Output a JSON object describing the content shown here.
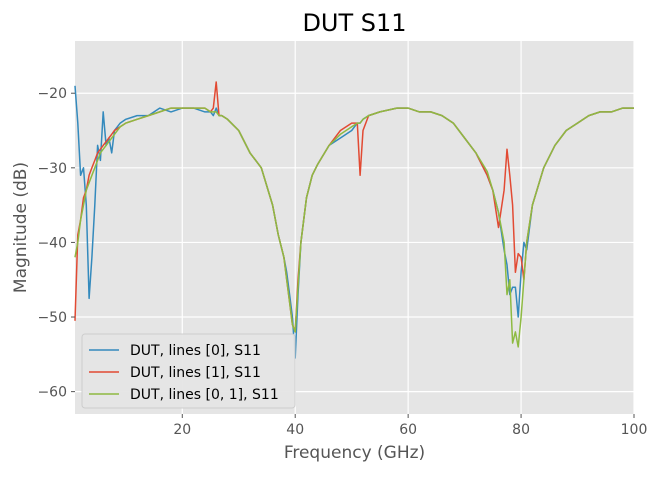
{
  "chart_data": {
    "type": "line",
    "title": "DUT S11",
    "xlabel": "Frequency (GHz)",
    "ylabel": "Magnitude (dB)",
    "xlim": [
      1,
      100
    ],
    "ylim": [
      -63,
      -13
    ],
    "xticks": [
      20,
      40,
      60,
      80,
      100
    ],
    "yticks": [
      -20,
      -30,
      -40,
      -50,
      -60
    ],
    "xtick_labels": [
      "20",
      "40",
      "60",
      "80",
      "100"
    ],
    "ytick_labels": [
      "−20",
      "−30",
      "−40",
      "−50",
      "−60"
    ],
    "grid": true,
    "style": "ggplot",
    "legend_position": "lower-left",
    "x": [
      1,
      1.5,
      2,
      2.5,
      3,
      3.5,
      4,
      4.5,
      5,
      5.5,
      6,
      6.5,
      7,
      7.5,
      8,
      9,
      10,
      12,
      14,
      16,
      18,
      20,
      22,
      24,
      25,
      25.5,
      26,
      26.5,
      27,
      28,
      30,
      32,
      34,
      36,
      37,
      38,
      38.5,
      39,
      39.5,
      40,
      40.5,
      41,
      41.5,
      42,
      43,
      44,
      46,
      48,
      50,
      51,
      51.5,
      52,
      53,
      55,
      58,
      60,
      62,
      64,
      66,
      68,
      70,
      72,
      74,
      75,
      76,
      77,
      77.5,
      78,
      78.5,
      79,
      79.5,
      80,
      80.5,
      81,
      82,
      84,
      86,
      88,
      90,
      92,
      94,
      96,
      98,
      99,
      100
    ],
    "series": [
      {
        "name": "DUT, lines [0], S11",
        "color": "#348ABD",
        "values": [
          -19,
          -24,
          -31,
          -30,
          -35,
          -47.5,
          -42,
          -35,
          -27,
          -29,
          -22.5,
          -27,
          -26,
          -28,
          -25,
          -24,
          -23.5,
          -23,
          -23,
          -22,
          -22.5,
          -22,
          -22,
          -22.5,
          -22.5,
          -23,
          -22,
          -23,
          -23,
          -23.5,
          -25,
          -28,
          -30,
          -35,
          -39,
          -42,
          -44,
          -47,
          -50,
          -55.5,
          -47,
          -40,
          -37,
          -34,
          -31,
          -29.5,
          -27,
          -26,
          -25,
          -24,
          -24,
          -23.5,
          -23,
          -22.5,
          -22,
          -22,
          -22.5,
          -22.5,
          -23,
          -24,
          -26,
          -28,
          -31,
          -33,
          -36,
          -41,
          -43,
          -47,
          -46,
          -46,
          -50,
          -44,
          -40,
          -41,
          -35,
          -30,
          -27,
          -25,
          -24,
          -23,
          -22.5,
          -22.5,
          -22,
          -22,
          -22
        ]
      },
      {
        "name": "DUT, lines [1], S11",
        "color": "#E24A33",
        "values": [
          -50.5,
          -39,
          -37,
          -34,
          -33,
          -31,
          -30,
          -29,
          -28,
          -27.5,
          -27,
          -26.5,
          -26,
          -25.5,
          -25,
          -24.5,
          -24,
          -23.5,
          -23,
          -22.5,
          -22,
          -22,
          -22,
          -22,
          -22.5,
          -22,
          -18.5,
          -23,
          -23,
          -23.5,
          -25,
          -28,
          -30,
          -35,
          -39,
          -42,
          -45,
          -48,
          -51,
          -52,
          -45,
          -40,
          -37,
          -34,
          -31,
          -29.5,
          -27,
          -25,
          -24,
          -24,
          -31,
          -25,
          -23,
          -22.5,
          -22,
          -22,
          -22.5,
          -22.5,
          -23,
          -24,
          -26,
          -28,
          -31,
          -33,
          -38,
          -33,
          -27.5,
          -31,
          -35,
          -44,
          -41.5,
          -42,
          -45,
          -40,
          -35,
          -30,
          -27,
          -25,
          -24,
          -23,
          -22.5,
          -22.5,
          -22,
          -22,
          -22
        ]
      },
      {
        "name": "DUT, lines [0, 1], S11",
        "color": "#8EBA42",
        "values": [
          -42,
          -40,
          -37,
          -35,
          -33,
          -32,
          -31,
          -30,
          -29,
          -28,
          -27.5,
          -27,
          -26.5,
          -26,
          -25.5,
          -24.5,
          -24,
          -23.5,
          -23,
          -22.5,
          -22,
          -22,
          -22,
          -22,
          -22.5,
          -22.5,
          -22.5,
          -23,
          -23,
          -23.5,
          -25,
          -28,
          -30,
          -35,
          -39,
          -42,
          -45,
          -48,
          -51,
          -52,
          -46,
          -40,
          -37,
          -34,
          -31,
          -29.5,
          -27,
          -25.5,
          -24.5,
          -24,
          -24,
          -23.5,
          -23,
          -22.5,
          -22,
          -22,
          -22.5,
          -22.5,
          -23,
          -24,
          -26,
          -28,
          -30.5,
          -33,
          -36,
          -40,
          -47,
          -45,
          -53.5,
          -52,
          -54,
          -50,
          -45,
          -40,
          -35,
          -30,
          -27,
          -25,
          -24,
          -23,
          -22.5,
          -22.5,
          -22,
          -22,
          -22
        ]
      }
    ]
  }
}
